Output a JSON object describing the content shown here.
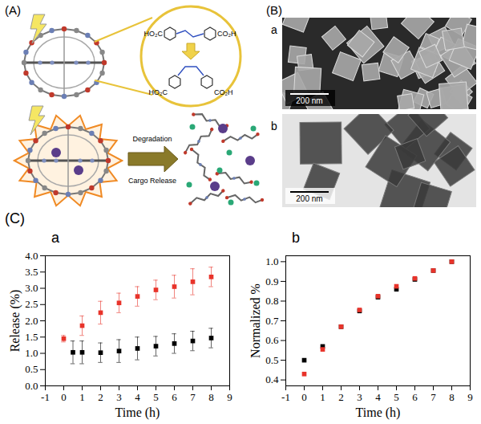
{
  "figure": {
    "panel_A": {
      "label": "(A)",
      "molecules": [
        {
          "left": "HO₂C",
          "right": "CO₂H"
        },
        {
          "left": "HO₂C",
          "right": "CO₂H"
        }
      ],
      "arrow_top": "Degradation",
      "arrow_bottom": "Cargo Release"
    },
    "panel_B": {
      "label": "(B)",
      "images": [
        {
          "label": "a",
          "scale_bar": "200 nm"
        },
        {
          "label": "b",
          "scale_bar": "200 nm"
        }
      ]
    },
    "panel_C": {
      "label": "(C)"
    }
  },
  "chart_data": [
    {
      "type": "scatter",
      "title": "a",
      "x_label": "Time (h)",
      "y_label": "Release (%)",
      "xlim": [
        -1,
        9
      ],
      "xticks": [
        -1,
        0,
        1,
        2,
        3,
        4,
        5,
        6,
        7,
        8,
        9
      ],
      "ylim": [
        0,
        4
      ],
      "yticks": [
        {
          "value": 0,
          "label": "0.0"
        },
        0.5,
        {
          "value": 1,
          "label": "1.0"
        },
        1.5,
        {
          "value": 2,
          "label": "2.0"
        },
        2.5,
        {
          "value": 3,
          "label": "3.0"
        },
        3.5,
        {
          "value": 4,
          "label": "4.0"
        }
      ],
      "series": [
        {
          "color": "#e8332a",
          "marker": "square",
          "x": [
            0,
            1,
            2,
            3,
            4,
            5,
            6,
            7,
            8
          ],
          "values": [
            1.45,
            1.85,
            2.25,
            2.55,
            2.75,
            2.95,
            3.05,
            3.2,
            3.35
          ],
          "errors": [
            0.1,
            0.3,
            0.35,
            0.3,
            0.3,
            0.3,
            0.35,
            0.4,
            0.3
          ]
        },
        {
          "color": "#000000",
          "marker": "square",
          "x": [
            0.5,
            1,
            2,
            3,
            4,
            5,
            6,
            7,
            8
          ],
          "values": [
            1.03,
            1.03,
            1.02,
            1.07,
            1.15,
            1.22,
            1.3,
            1.38,
            1.47
          ],
          "errors": [
            0.35,
            0.35,
            0.3,
            0.35,
            0.35,
            0.3,
            0.3,
            0.3,
            0.3
          ]
        }
      ]
    },
    {
      "type": "scatter",
      "title": "b",
      "x_label": "Time (h)",
      "y_label": "Normalized %",
      "xlim": [
        -1,
        9
      ],
      "xticks": [
        -1,
        0,
        1,
        2,
        3,
        4,
        5,
        6,
        7,
        8,
        9
      ],
      "ylim": [
        0.37,
        1.03
      ],
      "yticks": [
        0.4,
        0.5,
        0.6,
        0.7,
        0.8,
        0.9,
        {
          "value": 1,
          "label": "1.0"
        }
      ],
      "series": [
        {
          "color": "#000000",
          "marker": "square",
          "x": [
            0,
            1,
            2,
            3,
            4,
            5,
            6,
            7,
            8
          ],
          "values": [
            0.5,
            0.57,
            0.67,
            0.75,
            0.82,
            0.86,
            0.91,
            0.955,
            1.0
          ]
        },
        {
          "color": "#e8332a",
          "marker": "square",
          "x": [
            0,
            1,
            2,
            3,
            4,
            5,
            6,
            7,
            8
          ],
          "values": [
            0.43,
            0.555,
            0.67,
            0.755,
            0.825,
            0.875,
            0.915,
            0.955,
            1.0
          ]
        }
      ]
    }
  ]
}
